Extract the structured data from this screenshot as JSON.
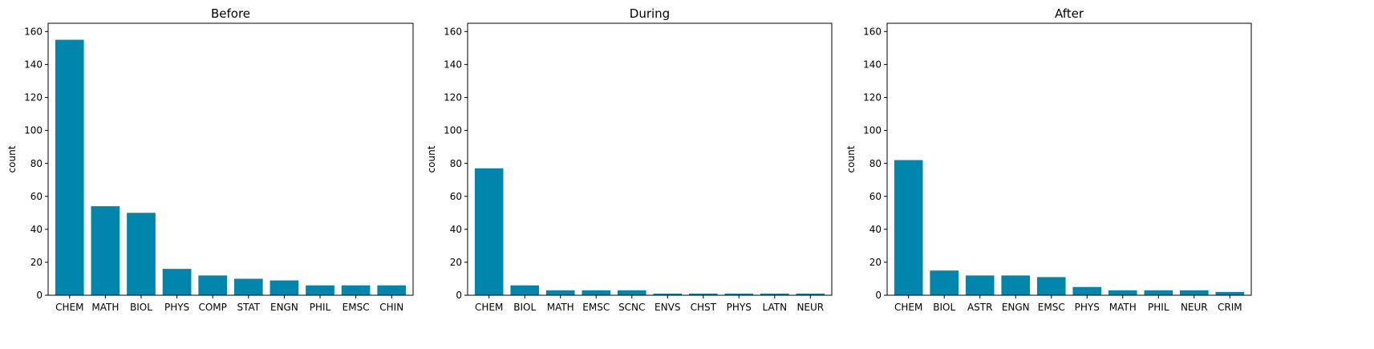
{
  "chart_data": [
    {
      "type": "bar",
      "title": "Before",
      "xlabel": "",
      "ylabel": "count",
      "ylim": [
        0,
        165
      ],
      "yticks": [
        0,
        20,
        40,
        60,
        80,
        100,
        120,
        140,
        160
      ],
      "categories": [
        "CHEM",
        "MATH",
        "BIOL",
        "PHYS",
        "COMP",
        "STAT",
        "ENGN",
        "PHIL",
        "EMSC",
        "CHIN"
      ],
      "values": [
        155,
        54,
        50,
        16,
        12,
        10,
        9,
        6,
        6,
        6
      ],
      "color": "#0086ad",
      "grid": false
    },
    {
      "type": "bar",
      "title": "During",
      "xlabel": "",
      "ylabel": "count",
      "ylim": [
        0,
        165
      ],
      "yticks": [
        0,
        20,
        40,
        60,
        80,
        100,
        120,
        140,
        160
      ],
      "categories": [
        "CHEM",
        "BIOL",
        "MATH",
        "EMSC",
        "SCNC",
        "ENVS",
        "CHST",
        "PHYS",
        "LATN",
        "NEUR"
      ],
      "values": [
        77,
        6,
        3,
        3,
        3,
        1,
        1,
        1,
        1,
        1
      ],
      "color": "#0086ad",
      "grid": false
    },
    {
      "type": "bar",
      "title": "After",
      "xlabel": "",
      "ylabel": "count",
      "ylim": [
        0,
        165
      ],
      "yticks": [
        0,
        20,
        40,
        60,
        80,
        100,
        120,
        140,
        160
      ],
      "categories": [
        "CHEM",
        "BIOL",
        "ASTR",
        "ENGN",
        "EMSC",
        "PHYS",
        "MATH",
        "PHIL",
        "NEUR",
        "CRIM"
      ],
      "values": [
        82,
        15,
        12,
        12,
        11,
        5,
        3,
        3,
        3,
        2
      ],
      "color": "#0086ad",
      "grid": false
    }
  ]
}
